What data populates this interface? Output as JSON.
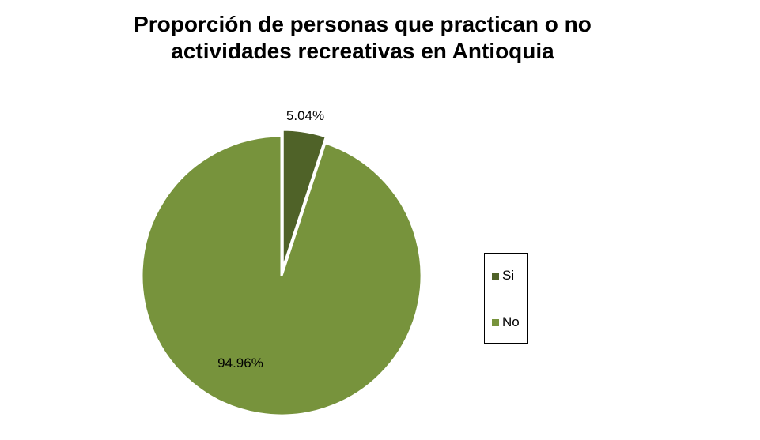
{
  "chart_data": {
    "type": "pie",
    "title_lines": [
      "Proporción de personas que practican o no",
      "actividades recreativas en Antioquia"
    ],
    "categories": [
      "Si",
      "No"
    ],
    "values": [
      5.04,
      94.96
    ],
    "data_labels": [
      "5.04%",
      "94.96%"
    ],
    "colors": [
      "#4f6228",
      "#77933c"
    ],
    "exploded": [
      "Si"
    ],
    "legend_position": "right",
    "legend": [
      {
        "label": "Si",
        "color": "#4f6228"
      },
      {
        "label": "No",
        "color": "#77933c"
      }
    ]
  }
}
